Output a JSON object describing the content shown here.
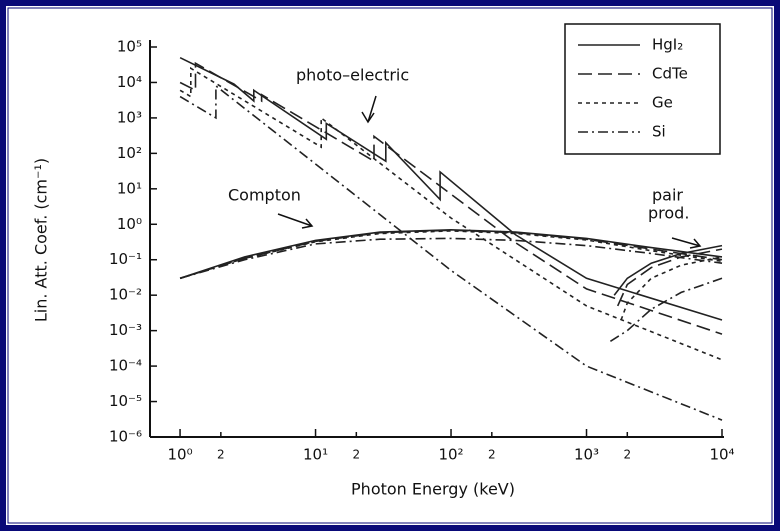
{
  "chart_data": {
    "type": "line",
    "xlabel": "Photon Energy (keV)",
    "ylabel": "Lin. Att. Coef. (cm⁻¹)",
    "xscale": "log",
    "yscale": "log",
    "xlim": [
      0.6,
      10000
    ],
    "ylim": [
      1e-06,
      100000
    ],
    "xticks": [
      {
        "value": 1,
        "label": "10⁰"
      },
      2,
      {
        "value": 10,
        "label": "10¹"
      },
      {
        "value": 20,
        "label": "2"
      },
      {
        "value": 100,
        "label": "10²"
      },
      {
        "value": 200,
        "label": "2"
      },
      {
        "value": 1000,
        "label": "10³"
      },
      {
        "value": 2000,
        "label": "2"
      },
      {
        "value": 10000,
        "label": "10⁴"
      }
    ],
    "yticks": [
      {
        "value": 100000,
        "label": "10⁵"
      },
      {
        "value": 10000,
        "label": "10⁴"
      },
      {
        "value": 1000,
        "label": "10³"
      },
      {
        "value": 100,
        "label": "10²"
      },
      {
        "value": 10,
        "label": "10¹"
      },
      {
        "value": 1,
        "label": "10⁰"
      },
      {
        "value": 0.1,
        "label": "10⁻¹"
      },
      {
        "value": 0.01,
        "label": "10⁻²"
      },
      {
        "value": 0.001,
        "label": "10⁻³"
      },
      {
        "value": 0.0001,
        "label": "10⁻⁴"
      },
      {
        "value": 1e-05,
        "label": "10⁻⁵"
      },
      {
        "value": 1e-06,
        "label": "10⁻⁶"
      }
    ],
    "legend": "upper right",
    "annotations": {
      "photo": "photo–electric",
      "compton": "Compton",
      "pair": [
        "pair",
        "prod."
      ]
    },
    "compton_x": [
      1,
      3,
      10,
      30,
      100,
      300,
      1000,
      3000,
      10000
    ],
    "series": [
      {
        "name": "HgI₂",
        "color": "#222222",
        "dash": "none",
        "x": [
          1,
          2.5,
          3.5,
          3.5,
          12,
          12,
          33,
          33,
          83,
          83,
          300,
          1000,
          10000
        ],
        "values": [
          50000,
          9000,
          3000,
          6000,
          250,
          700,
          60,
          200,
          5,
          30,
          0.5,
          0.03,
          0.002
        ],
        "compton": [
          0.03,
          0.12,
          0.35,
          0.6,
          0.7,
          0.6,
          0.4,
          0.22,
          0.12
        ],
        "pair_x": [
          1600,
          2000,
          3000,
          5000,
          10000
        ],
        "pair": [
          0.01,
          0.03,
          0.08,
          0.15,
          0.25
        ]
      },
      {
        "name": "CdTe",
        "color": "#222222",
        "dash": "14 6",
        "x": [
          1,
          1.3,
          1.3,
          4,
          4,
          27,
          27,
          300,
          1000,
          10000
        ],
        "values": [
          10000,
          6000,
          35000,
          3000,
          4500,
          60,
          300,
          0.3,
          0.015,
          0.0008
        ],
        "compton": [
          0.03,
          0.11,
          0.33,
          0.58,
          0.68,
          0.58,
          0.38,
          0.2,
          0.1
        ],
        "pair_x": [
          1700,
          2000,
          3000,
          5000,
          10000
        ],
        "pair": [
          0.005,
          0.02,
          0.06,
          0.12,
          0.2
        ]
      },
      {
        "name": "Ge",
        "color": "#222222",
        "dash": "4 4",
        "x": [
          1,
          1.2,
          1.2,
          11,
          11,
          100,
          1000,
          10000
        ],
        "values": [
          6000,
          4000,
          25000,
          150,
          1000,
          1.5,
          0.005,
          0.00015
        ],
        "compton": [
          0.03,
          0.11,
          0.32,
          0.55,
          0.65,
          0.55,
          0.36,
          0.18,
          0.09
        ],
        "pair_x": [
          1800,
          2000,
          3000,
          5000,
          10000
        ],
        "pair": [
          0.002,
          0.006,
          0.03,
          0.07,
          0.12
        ]
      },
      {
        "name": "Si",
        "color": "#222222",
        "dash": "10 4 2 4",
        "x": [
          1,
          1.84,
          1.84,
          10,
          100,
          1000,
          10000
        ],
        "values": [
          4000,
          1000,
          8000,
          50,
          0.05,
          0.0001,
          3e-06
        ],
        "compton": [
          0.03,
          0.1,
          0.28,
          0.38,
          0.4,
          0.35,
          0.25,
          0.15,
          0.08
        ],
        "pair_x": [
          1500,
          2000,
          3000,
          5000,
          10000
        ],
        "pair": [
          0.0005,
          0.001,
          0.004,
          0.012,
          0.03
        ]
      }
    ]
  }
}
